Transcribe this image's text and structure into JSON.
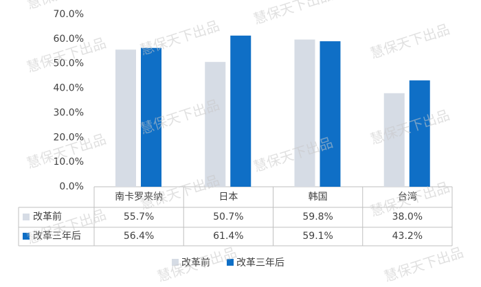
{
  "chart_data": {
    "type": "bar",
    "watermark": "慧保天下出品",
    "categories": [
      "南卡罗来纳",
      "日本",
      "韩国",
      "台湾"
    ],
    "series": [
      {
        "name": "改革前",
        "color": "#d6dce5",
        "values": [
          55.7,
          50.7,
          59.8,
          38.0
        ],
        "value_labels": [
          "55.7%",
          "50.7%",
          "59.8%",
          "38.0%"
        ]
      },
      {
        "name": "改革三年后",
        "color": "#0f6fc6",
        "values": [
          56.4,
          61.4,
          59.1,
          43.2
        ],
        "value_labels": [
          "56.4%",
          "61.4%",
          "59.1%",
          "43.2%"
        ]
      }
    ],
    "ylim": [
      0,
      70
    ],
    "yticks": [
      {
        "value": 0,
        "label": "0.0%"
      },
      {
        "value": 10,
        "label": "10.0%"
      },
      {
        "value": 20,
        "label": "20.0%"
      },
      {
        "value": 30,
        "label": "30.0%"
      },
      {
        "value": 40,
        "label": "40.0%"
      },
      {
        "value": 50,
        "label": "50.0%"
      },
      {
        "value": 60,
        "label": "60.0%"
      },
      {
        "value": 70,
        "label": "70.0%"
      }
    ],
    "grid": false,
    "legend": "bottom"
  }
}
